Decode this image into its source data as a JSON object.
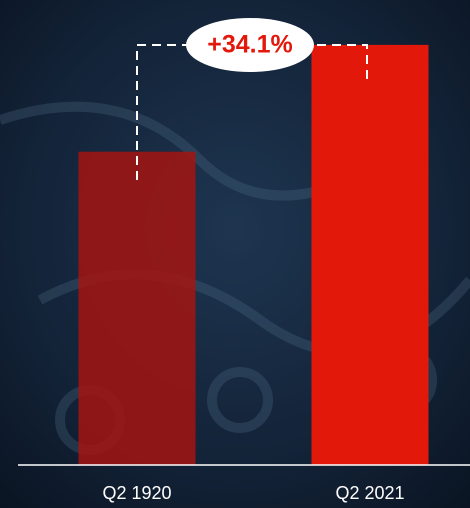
{
  "chart_data": {
    "type": "bar",
    "categories": [
      "Q2 1920",
      "Q2 2021"
    ],
    "values": [
      100,
      134.1
    ],
    "colors": [
      "#a51410",
      "#e2180b"
    ],
    "ylim": [
      0,
      143
    ],
    "annotation": "+34.1%"
  }
}
